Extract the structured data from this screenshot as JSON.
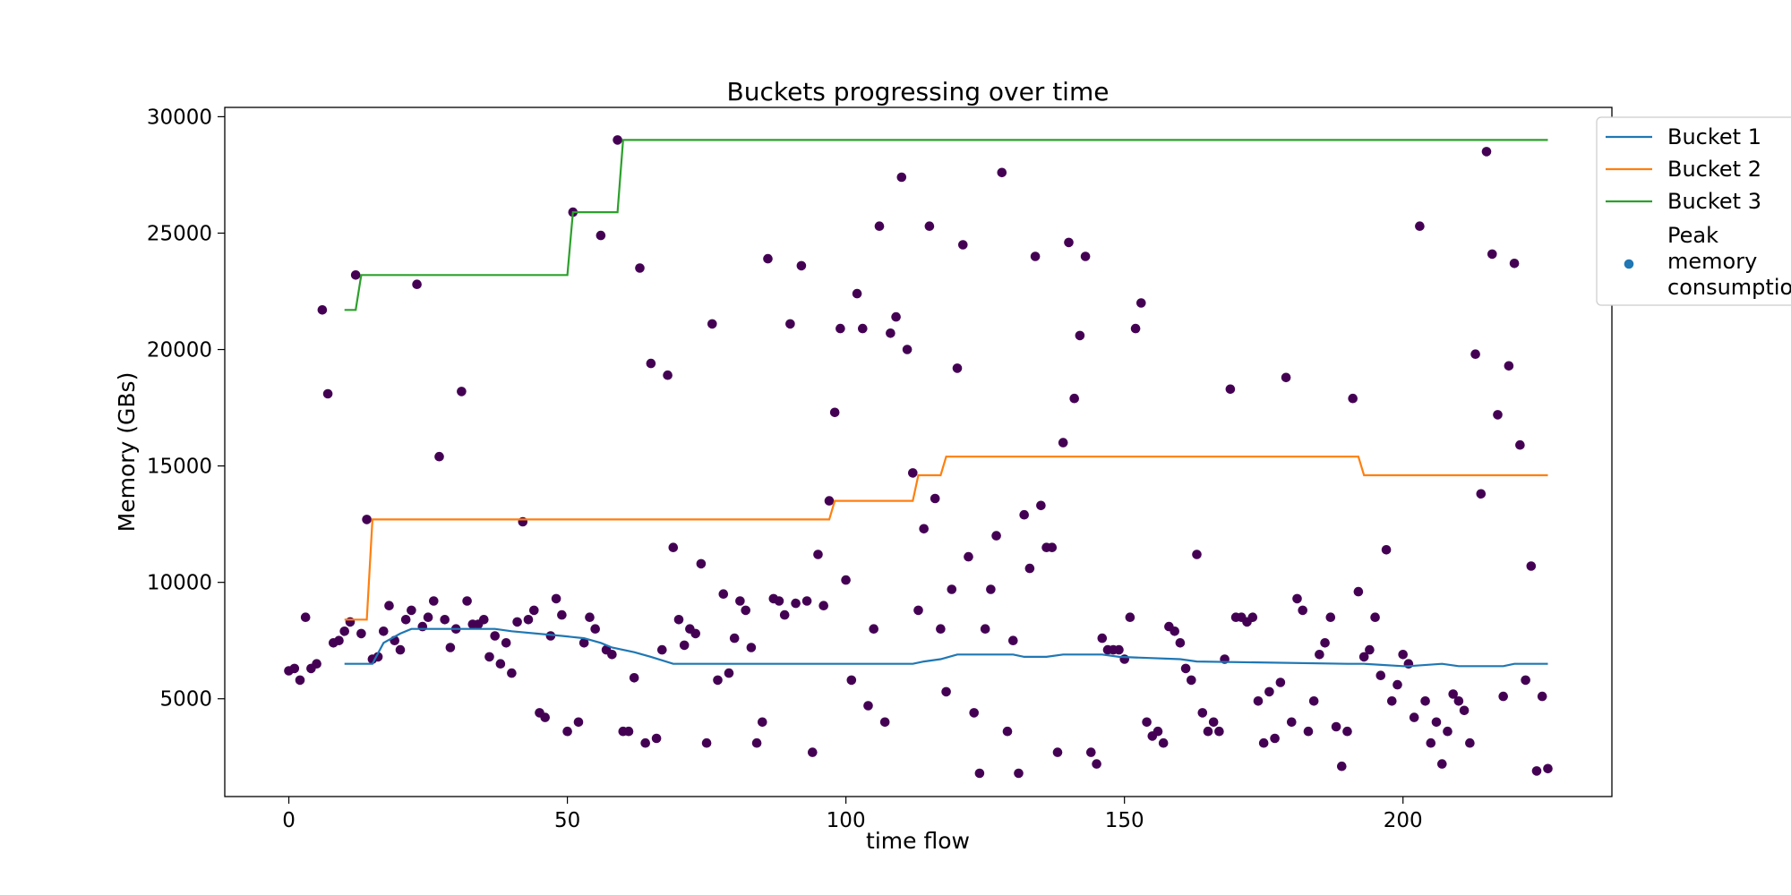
{
  "chart_data": {
    "type": "line",
    "title": "Buckets progressing over time",
    "xlabel": "time flow",
    "ylabel": "Memory (GBs)",
    "xlim": [
      -11.5,
      237.5
    ],
    "ylim": [
      800,
      30400
    ],
    "xticks": [
      0,
      50,
      100,
      150,
      200
    ],
    "yticks": [
      5000,
      10000,
      15000,
      20000,
      25000,
      30000
    ],
    "grid": false,
    "legend_position": "outside-top-right",
    "legend": [
      "Bucket 1",
      "Bucket 2",
      "Bucket 3",
      "Peak memory consumption"
    ],
    "series": [
      {
        "name": "Bucket 1",
        "kind": "line",
        "color": "#1f77b4",
        "x": [
          10,
          15,
          17,
          20,
          22,
          37,
          40,
          49,
          53,
          56,
          58,
          60,
          62,
          65,
          69,
          112,
          114,
          117,
          120,
          130,
          132,
          136,
          139,
          146,
          149,
          160,
          163,
          190,
          193,
          200,
          201,
          207,
          210,
          218,
          220,
          226
        ],
        "y": [
          6500,
          6500,
          7400,
          7800,
          8000,
          8000,
          7900,
          7700,
          7600,
          7400,
          7200,
          7100,
          7000,
          6800,
          6500,
          6500,
          6600,
          6700,
          6900,
          6900,
          6800,
          6800,
          6900,
          6900,
          6800,
          6700,
          6600,
          6500,
          6500,
          6400,
          6400,
          6500,
          6400,
          6400,
          6500,
          6500
        ]
      },
      {
        "name": "Bucket 2",
        "kind": "line",
        "color": "#ff7f0e",
        "x": [
          10,
          14,
          15,
          97,
          98,
          112,
          113,
          117,
          118,
          192,
          193,
          226
        ],
        "y": [
          8400,
          8400,
          12700,
          12700,
          13500,
          13500,
          14600,
          14600,
          15400,
          15400,
          14600,
          14600
        ]
      },
      {
        "name": "Bucket 3",
        "kind": "line",
        "color": "#2ca02c",
        "x": [
          10,
          12,
          13,
          50,
          51,
          59,
          60,
          226
        ],
        "y": [
          21700,
          21700,
          23200,
          23200,
          25900,
          25900,
          29000,
          29000
        ]
      },
      {
        "name": "Peak memory consumption",
        "kind": "scatter",
        "color": "#440154",
        "legend_marker_color": "#1f77b4",
        "x": [
          0,
          1,
          2,
          3,
          4,
          5,
          6,
          7,
          8,
          9,
          10,
          11,
          12,
          13,
          14,
          15,
          16,
          17,
          18,
          19,
          20,
          21,
          22,
          23,
          24,
          25,
          26,
          27,
          28,
          29,
          30,
          31,
          32,
          33,
          34,
          35,
          36,
          37,
          38,
          39,
          40,
          41,
          42,
          43,
          44,
          45,
          46,
          47,
          48,
          49,
          50,
          51,
          52,
          53,
          54,
          55,
          56,
          57,
          58,
          59,
          60,
          61,
          62,
          63,
          64,
          65,
          66,
          67,
          68,
          69,
          70,
          71,
          72,
          73,
          74,
          75,
          76,
          77,
          78,
          79,
          80,
          81,
          82,
          83,
          84,
          85,
          86,
          87,
          88,
          89,
          90,
          91,
          92,
          93,
          94,
          95,
          96,
          97,
          98,
          99,
          100,
          101,
          102,
          103,
          104,
          105,
          106,
          107,
          108,
          109,
          110,
          111,
          112,
          113,
          114,
          115,
          116,
          117,
          118,
          119,
          120,
          121,
          122,
          123,
          124,
          125,
          126,
          127,
          128,
          129,
          130,
          131,
          132,
          133,
          134,
          135,
          136,
          137,
          138,
          139,
          140,
          141,
          142,
          143,
          144,
          145,
          146,
          147,
          148,
          149,
          150,
          151,
          152,
          153,
          154,
          155,
          156,
          157,
          158,
          159,
          160,
          161,
          162,
          163,
          164,
          165,
          166,
          167,
          168,
          169,
          170,
          171,
          172,
          173,
          174,
          175,
          176,
          177,
          178,
          179,
          180,
          181,
          182,
          183,
          184,
          185,
          186,
          187,
          188,
          189,
          190,
          191,
          192,
          193,
          194,
          195,
          196,
          197,
          198,
          199,
          200,
          201,
          202,
          203,
          204,
          205,
          206,
          207,
          208,
          209,
          210,
          211,
          212,
          213,
          214,
          215,
          216,
          217,
          218,
          219,
          220,
          221,
          222,
          223,
          224,
          225,
          226
        ],
        "y": [
          6200,
          6300,
          5800,
          8500,
          6300,
          6500,
          21700,
          18100,
          7400,
          7500,
          7900,
          8300,
          23200,
          7800,
          12700,
          6700,
          6800,
          7900,
          9000,
          7500,
          7100,
          8400,
          8800,
          22800,
          8100,
          8500,
          9200,
          15400,
          8400,
          7200,
          8000,
          18200,
          9200,
          8200,
          8200,
          8400,
          6800,
          7700,
          6500,
          7400,
          6100,
          8300,
          12600,
          8400,
          8800,
          4400,
          4200,
          7700,
          9300,
          8600,
          3600,
          25900,
          4000,
          7400,
          8500,
          8000,
          24900,
          7100,
          6900,
          29000,
          3600,
          3600,
          5900,
          23500,
          3100,
          19400,
          3300,
          7100,
          18900,
          11500,
          8400,
          7300,
          8000,
          7800,
          10800,
          3100,
          21100,
          5800,
          9500,
          6100,
          7600,
          9200,
          8800,
          7200,
          3100,
          4000,
          23900,
          9300,
          9200,
          8600,
          21100,
          9100,
          23600,
          9200,
          2700,
          11200,
          9000,
          13500,
          17300,
          20900,
          10100,
          5800,
          22400,
          20900,
          4700,
          8000,
          25300,
          4000,
          20700,
          21400,
          27400,
          20000,
          14700,
          8800,
          12300,
          25300,
          13600,
          8000,
          5300,
          9700,
          19200,
          24500,
          11100,
          4400,
          1800,
          8000,
          9700,
          12000,
          27600,
          3600,
          7500,
          1800,
          12900,
          10600,
          24000,
          13300,
          11500,
          11500,
          2700,
          16000,
          24600,
          17900,
          20600,
          24000,
          2700,
          2200,
          7600,
          7100,
          7100,
          7100,
          6700,
          8500,
          20900,
          22000,
          4000,
          3400,
          3600,
          3100,
          8100,
          7900,
          7400,
          6300,
          5800,
          11200,
          4400,
          3600,
          4000,
          3600,
          6700,
          18300,
          8500,
          8500,
          8300,
          8500,
          4900,
          3100,
          5300,
          3300,
          5700,
          18800,
          4000,
          9300,
          8800,
          3600,
          4900,
          6900,
          7400,
          8500,
          3800,
          2100,
          3600,
          17900,
          9600,
          6800,
          7100,
          8500,
          6000,
          11400,
          4900,
          5600,
          6900,
          6500,
          4200,
          25300,
          4900,
          3100,
          4000,
          2200,
          3600,
          5200,
          4900,
          4500,
          3100,
          19800,
          13800,
          28500,
          24100,
          17200,
          5100,
          19300,
          23700,
          15900,
          5800,
          10700,
          1900,
          5100,
          2000
        ]
      }
    ]
  }
}
